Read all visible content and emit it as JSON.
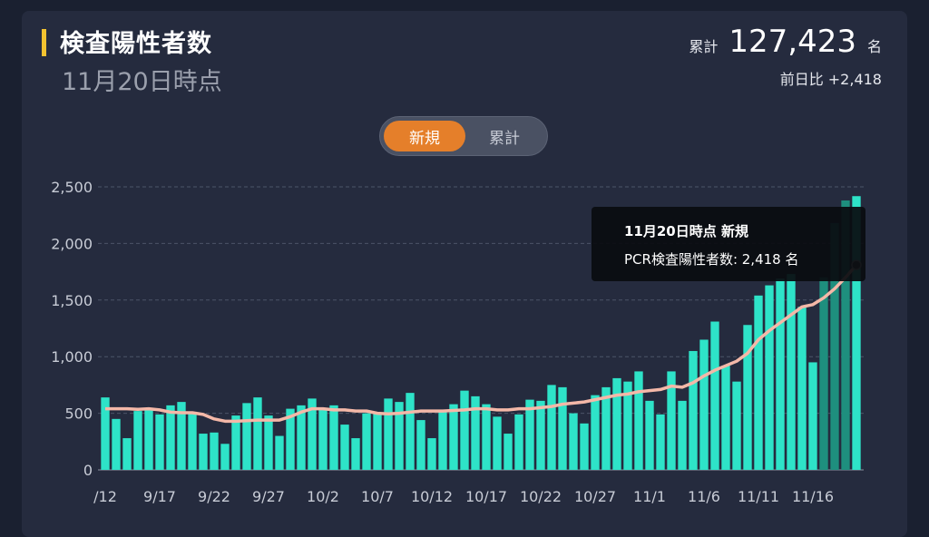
{
  "header": {
    "title": "検査陽性者数",
    "date": "11月20日時点",
    "total_label": "累計",
    "total_value": "127,423",
    "total_unit": "名",
    "diff_text": "前日比 +2,418"
  },
  "toggle": {
    "new_label": "新規",
    "cumulative_label": "累計",
    "selected": "新規"
  },
  "tooltip": {
    "title": "11月20日時点 新規",
    "body": "PCR検査陽性者数: 2,418 名"
  },
  "colors": {
    "bar": "#2ee3c8",
    "bar_dim": "#1e8f7e",
    "line": "#f4b8a8",
    "accent": "#f2c230",
    "toggle_active": "#e57f2a"
  },
  "chart_data": {
    "type": "bar",
    "ylim": [
      0,
      2500
    ],
    "yticks": [
      {
        "value": 0,
        "label": "0"
      },
      {
        "value": 500,
        "label": "500"
      },
      {
        "value": 1000,
        "label": "1,000"
      },
      {
        "value": 1500,
        "label": "1,500"
      },
      {
        "value": 2000,
        "label": "2,000"
      },
      {
        "value": 2500,
        "label": "2,500"
      }
    ],
    "xtick_labels": [
      {
        "index": 0,
        "label": "/12"
      },
      {
        "index": 5,
        "label": "9/17"
      },
      {
        "index": 10,
        "label": "9/22"
      },
      {
        "index": 15,
        "label": "9/27"
      },
      {
        "index": 20,
        "label": "10/2"
      },
      {
        "index": 25,
        "label": "10/7"
      },
      {
        "index": 30,
        "label": "10/12"
      },
      {
        "index": 35,
        "label": "10/17"
      },
      {
        "index": 40,
        "label": "10/22"
      },
      {
        "index": 45,
        "label": "10/27"
      },
      {
        "index": 50,
        "label": "11/1"
      },
      {
        "index": 55,
        "label": "11/6"
      },
      {
        "index": 60,
        "label": "11/11"
      },
      {
        "index": 65,
        "label": "11/16"
      }
    ],
    "series": [
      {
        "type": "bar",
        "values": [
          640,
          450,
          280,
          520,
          530,
          490,
          570,
          600,
          500,
          320,
          330,
          230,
          480,
          590,
          640,
          480,
          300,
          540,
          570,
          630,
          540,
          570,
          400,
          280,
          500,
          500,
          630,
          600,
          680,
          440,
          280,
          530,
          580,
          700,
          650,
          580,
          470,
          320,
          490,
          620,
          610,
          750,
          730,
          500,
          410,
          660,
          730,
          810,
          780,
          870,
          610,
          490,
          870,
          610,
          1050,
          1150,
          1310,
          920,
          780,
          1280,
          1540,
          1630,
          1690,
          1730,
          1440,
          950,
          1700,
          2180,
          2380,
          2418
        ]
      },
      {
        "type": "line",
        "values": [
          540,
          540,
          540,
          535,
          540,
          530,
          510,
          505,
          505,
          490,
          450,
          430,
          430,
          435,
          440,
          440,
          440,
          470,
          510,
          540,
          540,
          530,
          530,
          520,
          520,
          500,
          495,
          500,
          510,
          520,
          520,
          520,
          525,
          530,
          540,
          540,
          530,
          530,
          540,
          540,
          550,
          560,
          580,
          590,
          600,
          620,
          640,
          660,
          670,
          690,
          700,
          710,
          740,
          730,
          770,
          830,
          880,
          920,
          960,
          1030,
          1150,
          1230,
          1300,
          1370,
          1440,
          1460,
          1520,
          1600,
          1700,
          1810
        ]
      }
    ],
    "grid": true
  }
}
